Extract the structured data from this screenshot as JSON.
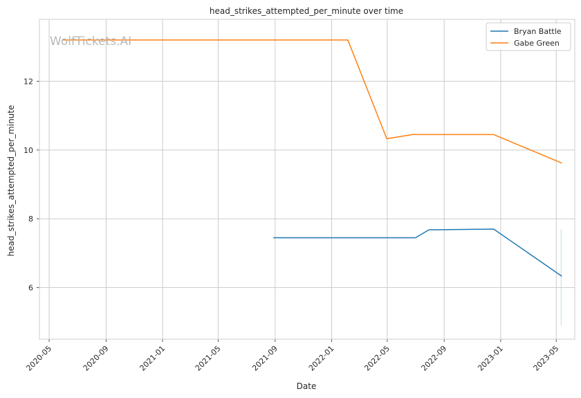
{
  "chart_data": {
    "type": "line",
    "title": "head_strikes_attempted_per_minute over time",
    "xlabel": "Date",
    "ylabel": "head_strikes_attempted_per_minute",
    "watermark": "WolfTickets.AI",
    "grid": true,
    "legend_position": "top-right",
    "x_ticks": [
      "2020-05",
      "2020-09",
      "2021-01",
      "2021-05",
      "2021-09",
      "2022-01",
      "2022-05",
      "2022-09",
      "2023-01",
      "2023-05"
    ],
    "y_ticks": [
      "6",
      "8",
      "10",
      "12"
    ],
    "ylim": [
      4.5,
      13.8
    ],
    "xlim": [
      "2020-04-10",
      "2023-06-10"
    ],
    "series": [
      {
        "name": "Bryan Battle",
        "color": "#1f77b4",
        "points": [
          {
            "x": "2021-08-28",
            "y": 7.45
          },
          {
            "x": "2022-07-01",
            "y": 7.45
          },
          {
            "x": "2022-07-30",
            "y": 7.68
          },
          {
            "x": "2022-12-17",
            "y": 7.7
          },
          {
            "x": "2023-05-13",
            "y": 6.33
          }
        ]
      },
      {
        "name": "Gabe Green",
        "color": "#ff7f0e",
        "points": [
          {
            "x": "2020-05-30",
            "y": 13.2
          },
          {
            "x": "2022-02-05",
            "y": 13.2
          },
          {
            "x": "2022-04-30",
            "y": 10.33
          },
          {
            "x": "2022-06-25",
            "y": 10.45
          },
          {
            "x": "2022-12-17",
            "y": 10.45
          },
          {
            "x": "2023-05-13",
            "y": 9.62
          }
        ]
      }
    ]
  }
}
